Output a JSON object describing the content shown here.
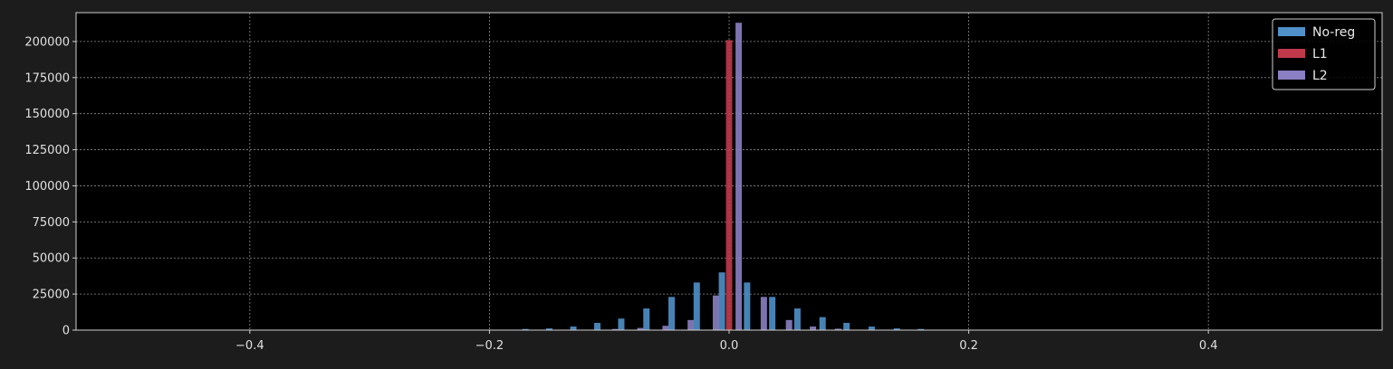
{
  "chart_data": {
    "type": "bar",
    "title": "",
    "xlabel": "",
    "ylabel": "",
    "xlim": [
      -0.545,
      0.545
    ],
    "ylim": [
      0,
      220000
    ],
    "grid": true,
    "legend_position": "top-right",
    "x_ticks": [
      {
        "value": -0.4,
        "label": "−0.4"
      },
      {
        "value": -0.2,
        "label": "−0.2"
      },
      {
        "value": 0.0,
        "label": "0.0"
      },
      {
        "value": 0.2,
        "label": "0.2"
      },
      {
        "value": 0.4,
        "label": "0.4"
      }
    ],
    "y_ticks": [
      {
        "value": 0,
        "label": "0"
      },
      {
        "value": 25000,
        "label": "25000"
      },
      {
        "value": 50000,
        "label": "50000"
      },
      {
        "value": 75000,
        "label": "75000"
      },
      {
        "value": 100000,
        "label": "100000"
      },
      {
        "value": 125000,
        "label": "125000"
      },
      {
        "value": 150000,
        "label": "150000"
      },
      {
        "value": 175000,
        "label": "175000"
      },
      {
        "value": 200000,
        "label": "200000"
      }
    ],
    "series": [
      {
        "name": "No-reg",
        "color": "#4f90c9",
        "points": [
          {
            "x": -0.17,
            "y": 800
          },
          {
            "x": -0.15,
            "y": 1200
          },
          {
            "x": -0.13,
            "y": 2500
          },
          {
            "x": -0.11,
            "y": 5000
          },
          {
            "x": -0.09,
            "y": 8000
          },
          {
            "x": -0.069,
            "y": 15000
          },
          {
            "x": -0.048,
            "y": 23000
          },
          {
            "x": -0.027,
            "y": 33000
          },
          {
            "x": -0.006,
            "y": 40000
          },
          {
            "x": 0.015,
            "y": 33000
          },
          {
            "x": 0.036,
            "y": 23000
          },
          {
            "x": 0.057,
            "y": 15000
          },
          {
            "x": 0.078,
            "y": 9000
          },
          {
            "x": 0.098,
            "y": 5000
          },
          {
            "x": 0.119,
            "y": 2500
          },
          {
            "x": 0.14,
            "y": 1200
          },
          {
            "x": 0.16,
            "y": 800
          }
        ]
      },
      {
        "name": "L1",
        "color": "#c0394b",
        "points": [
          {
            "x": 0.0,
            "y": 201000
          }
        ]
      },
      {
        "name": "L2",
        "color": "#8a7fc2",
        "points": [
          {
            "x": -0.095,
            "y": 800
          },
          {
            "x": -0.074,
            "y": 1500
          },
          {
            "x": -0.053,
            "y": 3000
          },
          {
            "x": -0.032,
            "y": 7000
          },
          {
            "x": -0.011,
            "y": 24000
          },
          {
            "x": 0.008,
            "y": 213000
          },
          {
            "x": 0.029,
            "y": 23000
          },
          {
            "x": 0.05,
            "y": 7000
          },
          {
            "x": 0.07,
            "y": 2500
          },
          {
            "x": 0.091,
            "y": 1000
          }
        ]
      }
    ]
  }
}
